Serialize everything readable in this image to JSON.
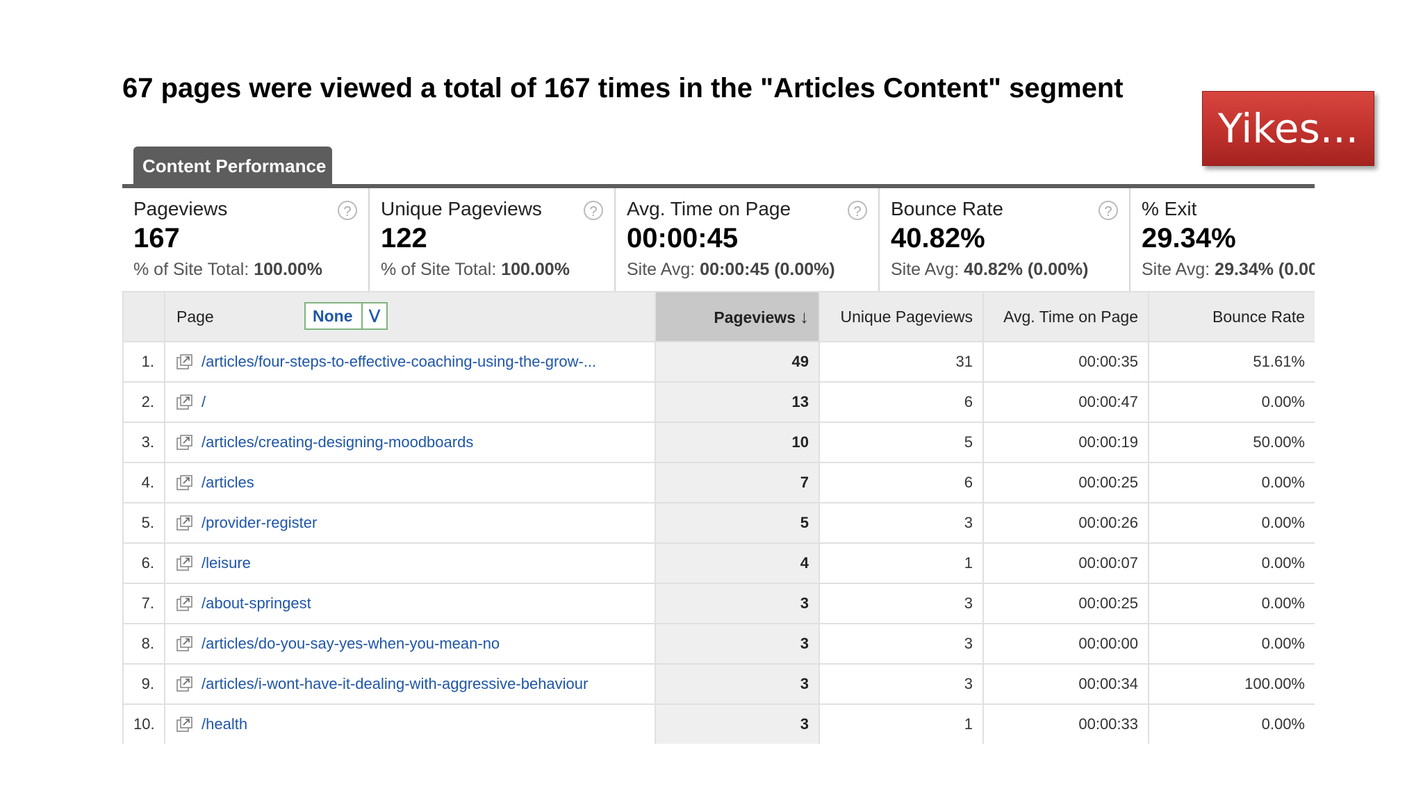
{
  "headline": "67 pages were viewed a total of 167 times in the \"Articles Content\" segment",
  "callout": "Yikes...",
  "tab": "Content Performance",
  "metrics": [
    {
      "label": "Pageviews",
      "value": "167",
      "sub_label": "% of Site Total:",
      "sub_value": "100.00%"
    },
    {
      "label": "Unique Pageviews",
      "value": "122",
      "sub_label": "% of Site Total:",
      "sub_value": "100.00%"
    },
    {
      "label": "Avg. Time on Page",
      "value": "00:00:45",
      "sub_label": "Site Avg:",
      "sub_value": "00:00:45 (0.00%)"
    },
    {
      "label": "Bounce Rate",
      "value": "40.82%",
      "sub_label": "Site Avg:",
      "sub_value": "40.82% (0.00%)"
    },
    {
      "label": "% Exit",
      "value": "29.34%",
      "sub_label": "Site Avg:",
      "sub_value": "29.34% (0.00"
    }
  ],
  "help_glyph": "?",
  "table": {
    "headers": {
      "page": "Page",
      "secondary_dimension": "None",
      "pageviews": "Pageviews",
      "unique_pageviews": "Unique Pageviews",
      "avg_time": "Avg. Time on Page",
      "bounce_rate": "Bounce Rate"
    },
    "rows": [
      {
        "n": "1.",
        "page": "/articles/four-steps-to-effective-coaching-using-the-grow-...",
        "pageviews": "49",
        "unique": "31",
        "time": "00:00:35",
        "bounce": "51.61%"
      },
      {
        "n": "2.",
        "page": "/",
        "pageviews": "13",
        "unique": "6",
        "time": "00:00:47",
        "bounce": "0.00%"
      },
      {
        "n": "3.",
        "page": "/articles/creating-designing-moodboards",
        "pageviews": "10",
        "unique": "5",
        "time": "00:00:19",
        "bounce": "50.00%"
      },
      {
        "n": "4.",
        "page": "/articles",
        "pageviews": "7",
        "unique": "6",
        "time": "00:00:25",
        "bounce": "0.00%"
      },
      {
        "n": "5.",
        "page": "/provider-register",
        "pageviews": "5",
        "unique": "3",
        "time": "00:00:26",
        "bounce": "0.00%"
      },
      {
        "n": "6.",
        "page": "/leisure",
        "pageviews": "4",
        "unique": "1",
        "time": "00:00:07",
        "bounce": "0.00%"
      },
      {
        "n": "7.",
        "page": "/about-springest",
        "pageviews": "3",
        "unique": "3",
        "time": "00:00:25",
        "bounce": "0.00%"
      },
      {
        "n": "8.",
        "page": "/articles/do-you-say-yes-when-you-mean-no",
        "pageviews": "3",
        "unique": "3",
        "time": "00:00:00",
        "bounce": "0.00%"
      },
      {
        "n": "9.",
        "page": "/articles/i-wont-have-it-dealing-with-aggressive-behaviour",
        "pageviews": "3",
        "unique": "3",
        "time": "00:00:34",
        "bounce": "100.00%"
      },
      {
        "n": "10.",
        "page": "/health",
        "pageviews": "3",
        "unique": "1",
        "time": "00:00:33",
        "bounce": "0.00%"
      }
    ]
  },
  "colors": {
    "link": "#1f56a8",
    "tab": "#5d5d5d",
    "callout": "#c0312c"
  }
}
